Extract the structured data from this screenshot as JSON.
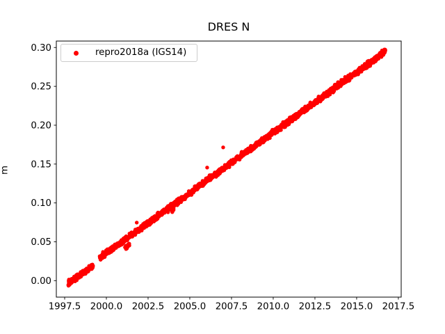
{
  "figure": {
    "kind": "matplotlib-scatter-figure",
    "background": "#ffffff"
  },
  "chart_data": {
    "type": "scatter",
    "title": "DRES N",
    "xlabel": "",
    "ylabel": "m",
    "grid": false,
    "legend_position": "upper-left",
    "legend": [
      {
        "label": "repro2018a (IGS14)",
        "color": "#ff0000",
        "marker": "dot"
      }
    ],
    "xlim": [
      1997.0,
      2017.67
    ],
    "ylim": [
      -0.0212,
      0.3083
    ],
    "xticks": [
      1997.5,
      2000.0,
      2002.5,
      2005.0,
      2007.5,
      2010.0,
      2012.5,
      2015.0,
      2017.5
    ],
    "xtick_labels": [
      "1997.5",
      "2000.0",
      "2002.5",
      "2005.0",
      "2007.5",
      "2010.0",
      "2012.5",
      "2015.0",
      "2017.5"
    ],
    "yticks": [
      0.0,
      0.05,
      0.1,
      0.15,
      0.2,
      0.25,
      0.3
    ],
    "ytick_labels": [
      "0.00",
      "0.05",
      "0.10",
      "0.15",
      "0.20",
      "0.25",
      "0.30"
    ],
    "axis_color": "#000000",
    "series": [
      {
        "name": "repro2018a (IGS14)",
        "color": "#ff0000",
        "marker_radius": 2.7,
        "points_per_year": 110,
        "noise_std": 0.0017,
        "x_jitter": 0.004,
        "trend_slope_m_per_year": 0.0156,
        "segments": [
          {
            "x0": 1997.72,
            "x1": 1999.2,
            "y0": -0.0035,
            "y1": 0.0185
          },
          {
            "x0": 1999.6,
            "x1": 2016.72,
            "y0": 0.029,
            "y1": 0.295
          }
        ],
        "clusters": [
          {
            "x0": 2001.1,
            "x1": 2001.38,
            "y0": 0.0415,
            "y1": 0.0455,
            "n": 20,
            "noise": 0.0015
          },
          {
            "x0": 2003.9,
            "x1": 2004.04,
            "y0": 0.09,
            "y1": 0.093,
            "n": 10,
            "noise": 0.0013
          },
          {
            "x0": 2016.55,
            "x1": 2016.72,
            "y0": 0.293,
            "y1": 0.296,
            "n": 16,
            "noise": 0.0012
          }
        ],
        "outliers": [
          [
            2001.82,
            0.0747
          ],
          [
            2006.04,
            0.1455
          ],
          [
            2007.0,
            0.1715
          ]
        ]
      }
    ]
  }
}
